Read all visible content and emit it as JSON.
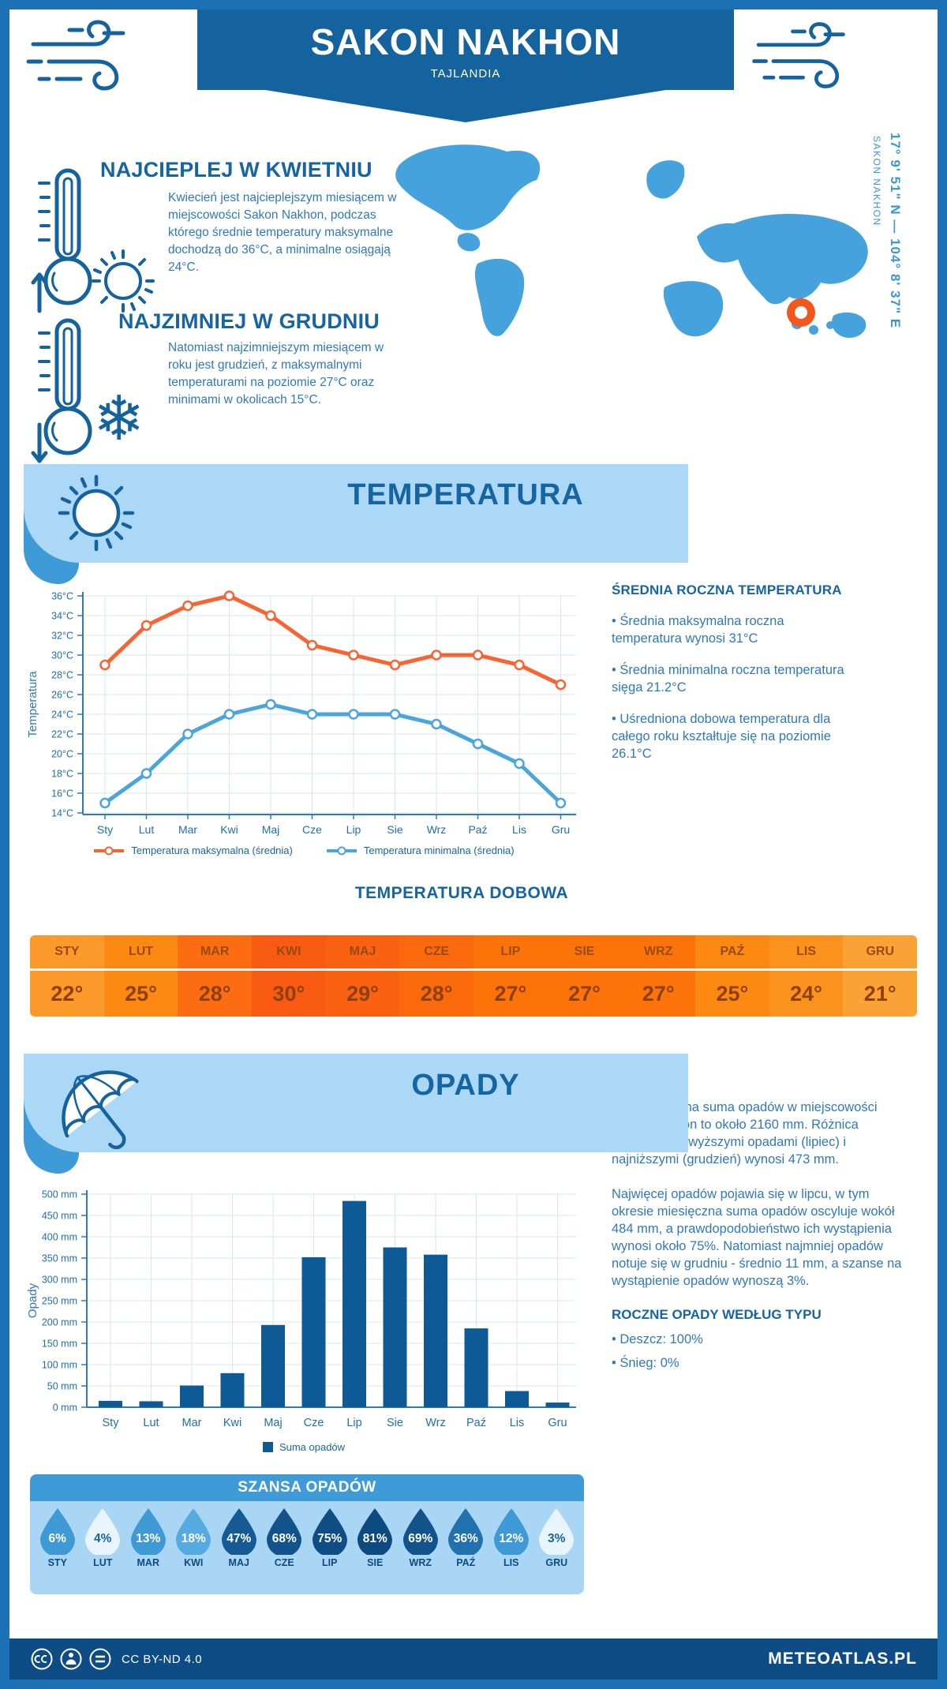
{
  "header": {
    "title": "SAKON NAKHON",
    "subtitle": "TAJLANDIA"
  },
  "highlights": {
    "warm": {
      "heading": "NAJCIEPLEJ W KWIETNIU",
      "text": "Kwiecień jest najcieplejszym miesiącem w miejscowości Sakon Nakhon, podczas którego średnie temperatury maksymalne dochodzą do 36°C, a minimalne osiągają 24°C."
    },
    "cold": {
      "heading": "NAJZIMNIEJ W GRUDNIU",
      "text": "Natomiast najzimniejszym miesiącem w roku jest grudzień, z maksymalnymi temperaturami na poziomie 27°C oraz minimami w okolicach 15°C."
    }
  },
  "map": {
    "coords": "17° 9' 51\" N — 104° 8' 37\" E",
    "label": "SAKON NAKHON"
  },
  "temperature": {
    "banner": "TEMPERATURA",
    "panel": {
      "heading": "ŚREDNIA ROCZNA TEMPERATURA",
      "bullets": [
        "• Średnia maksymalna roczna temperatura wynosi 31°C",
        "• Średnia minimalna roczna temperatura sięga 21.2°C",
        "• Uśredniona dobowa temperatura dla całego roku kształtuje się na poziomie 26.1°C"
      ]
    },
    "daily": {
      "title": "TEMPERATURA DOBOWA",
      "months": [
        "STY",
        "LUT",
        "MAR",
        "KWI",
        "MAJ",
        "CZE",
        "LIP",
        "SIE",
        "WRZ",
        "PAŹ",
        "LIS",
        "GRU"
      ],
      "values": [
        "22°",
        "25°",
        "28°",
        "30°",
        "29°",
        "28°",
        "27°",
        "27°",
        "27°",
        "25°",
        "24°",
        "21°"
      ],
      "cell_colors": [
        "#FB992B",
        "#FC8A12",
        "#FB6D10",
        "#F95A12",
        "#FA6110",
        "#FB690D",
        "#FC730A",
        "#FC730A",
        "#FC730A",
        "#FC8A12",
        "#FC921E",
        "#FBA236"
      ]
    }
  },
  "precipitation": {
    "banner": "OPADY",
    "paragraphs": [
      "Średnia roczna suma opadów w miejscowości Sakon Nakhon to około 2160 mm. Różnica pomiędzy najwyższymi opadami (lipiec) i najniższymi (grudzień) wynosi 473 mm.",
      "Najwięcej opadów pojawia się w lipcu, w tym okresie miesięczna suma opadów oscyluje wokół 484 mm, a prawdopodobieństwo ich wystąpienia wynosi około 75%. Natomiast najmniej opadów notuje się w grudniu - średnio 11 mm, a szanse na wystąpienie opadów wynoszą 3%."
    ],
    "type_heading": "ROCZNE OPADY WEDŁUG TYPU",
    "type_bullets": [
      "• Deszcz: 100%",
      "• Śnieg: 0%"
    ],
    "chance": {
      "title": "SZANSA OPADÓW",
      "items": [
        {
          "month": "STY",
          "pct": "6%",
          "fill": "#3E99D5",
          "text": "#FFFFFF"
        },
        {
          "month": "LUT",
          "pct": "4%",
          "fill": "#E9F5FD",
          "text": "#1565A3"
        },
        {
          "month": "MAR",
          "pct": "13%",
          "fill": "#3E99D5",
          "text": "#FFFFFF"
        },
        {
          "month": "KWI",
          "pct": "18%",
          "fill": "#55ABDF",
          "text": "#FFFFFF"
        },
        {
          "month": "MAJ",
          "pct": "47%",
          "fill": "#155A94",
          "text": "#FFFFFF"
        },
        {
          "month": "CZE",
          "pct": "68%",
          "fill": "#11538A",
          "text": "#FFFFFF"
        },
        {
          "month": "LIP",
          "pct": "75%",
          "fill": "#0F4E85",
          "text": "#FFFFFF"
        },
        {
          "month": "SIE",
          "pct": "81%",
          "fill": "#0D4A80",
          "text": "#FFFFFF"
        },
        {
          "month": "WRZ",
          "pct": "69%",
          "fill": "#11538A",
          "text": "#FFFFFF"
        },
        {
          "month": "PAŹ",
          "pct": "36%",
          "fill": "#2072AF",
          "text": "#FFFFFF"
        },
        {
          "month": "LIS",
          "pct": "12%",
          "fill": "#3E99D5",
          "text": "#FFFFFF"
        },
        {
          "month": "GRU",
          "pct": "3%",
          "fill": "#E9F5FD",
          "text": "#1565A3"
        }
      ]
    }
  },
  "chart_data": [
    {
      "type": "line",
      "title": "",
      "ylabel": "Temperatura",
      "yunit": "°C",
      "categories": [
        "Sty",
        "Lut",
        "Mar",
        "Kwi",
        "Maj",
        "Cze",
        "Lip",
        "Sie",
        "Wrz",
        "Paź",
        "Lis",
        "Gru"
      ],
      "series": [
        {
          "name": "Temperatura maksymalna (średnia)",
          "color": "#F96231",
          "values": [
            29,
            33,
            35,
            36,
            34,
            31,
            30,
            29,
            30,
            30,
            29,
            27
          ]
        },
        {
          "name": "Temperatura minimalna (średnia)",
          "color": "#4AA5DD",
          "values": [
            15,
            18,
            22,
            24,
            25,
            24,
            24,
            24,
            23,
            21,
            19,
            15
          ]
        }
      ],
      "ylim": [
        14,
        36
      ],
      "ytick_step": 2,
      "grid": true,
      "legend_position": "bottom"
    },
    {
      "type": "bar",
      "title": "",
      "ylabel": "Opady",
      "yunit": " mm",
      "categories": [
        "Sty",
        "Lut",
        "Mar",
        "Kwi",
        "Maj",
        "Cze",
        "Lip",
        "Sie",
        "Wrz",
        "Paź",
        "Lis",
        "Gru"
      ],
      "series": [
        {
          "name": "Suma opadów",
          "color": "#0E5A97",
          "values": [
            15,
            14,
            51,
            80,
            193,
            352,
            484,
            375,
            358,
            185,
            38,
            11
          ]
        }
      ],
      "ylim": [
        0,
        500
      ],
      "ytick_step": 50,
      "grid": true,
      "legend_position": "bottom"
    }
  ],
  "footer": {
    "license": "CC BY-ND 4.0",
    "brand": "METEOATLAS.PL"
  },
  "colors": {
    "banner_dark": "#15639E",
    "banner_light": "#ACD8F8",
    "tab_medium": "#3E9BD8",
    "heading": "#1565A3",
    "body_text": "#2E79BC",
    "map_land": "#45A2DC",
    "marker": "#F4571C",
    "bar": "#0E5A97",
    "footer": "#0E4C86",
    "frame": "#1C70B4"
  }
}
